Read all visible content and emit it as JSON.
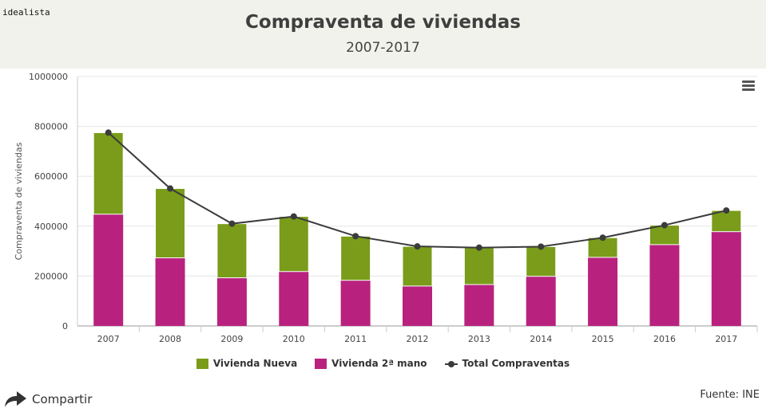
{
  "header": {
    "brand": "idealista",
    "title": "Compraventa de viviendas",
    "subtitle": "2007-2017"
  },
  "footer": {
    "share_label": "Compartir",
    "source": "Fuente: INE"
  },
  "icons": {
    "menu": "hamburger-menu-icon",
    "share": "share-arrow-icon"
  },
  "colors": {
    "nueva": "#7a9c1a",
    "segunda": "#b8227e",
    "total": "#3b3b3b",
    "grid": "#e6e6e6"
  },
  "chart_data": {
    "type": "bar",
    "stacked": true,
    "categories": [
      "2007",
      "2008",
      "2009",
      "2010",
      "2011",
      "2012",
      "2013",
      "2014",
      "2015",
      "2016",
      "2017"
    ],
    "series": [
      {
        "name": "Vivienda 2ª mano",
        "type": "bar",
        "values": [
          448000,
          273000,
          193000,
          218000,
          183000,
          160000,
          166000,
          199000,
          275000,
          326000,
          378000
        ]
      },
      {
        "name": "Vivienda Nueva",
        "type": "bar",
        "values": [
          327000,
          278000,
          217000,
          221000,
          177000,
          159000,
          148000,
          119000,
          79000,
          78000,
          85000
        ]
      },
      {
        "name": "Total Compraventas",
        "type": "line",
        "values": [
          775000,
          551000,
          410000,
          439000,
          360000,
          319000,
          314000,
          318000,
          354000,
          404000,
          463000
        ]
      }
    ],
    "ylabel": "Compraventa de viviendas",
    "ylim": [
      0,
      1000000
    ],
    "yticks": [
      "0",
      "200000",
      "400000",
      "600000",
      "800000",
      "1000000"
    ],
    "ytick_values": [
      0,
      200000,
      400000,
      600000,
      800000,
      1000000
    ],
    "legend": [
      "Vivienda Nueva",
      "Vivienda 2ª mano",
      "Total Compraventas"
    ],
    "legend_position": "bottom",
    "grid": true
  }
}
